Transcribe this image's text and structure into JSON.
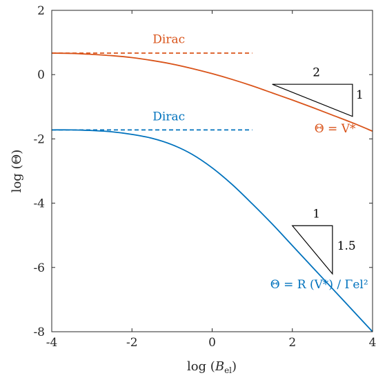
{
  "chart_data": {
    "type": "line",
    "xlabel": "log (B_el)",
    "ylabel": "log (Θ)",
    "xlim": [
      -4,
      4
    ],
    "ylim": [
      -8,
      2
    ],
    "xticks": [
      -4,
      -2,
      0,
      2,
      4
    ],
    "xtick_labels": [
      "-4",
      "-2",
      "0",
      "2",
      "4"
    ],
    "yticks": [
      -8,
      -6,
      -4,
      -2,
      0,
      2
    ],
    "ytick_labels": [
      "-8",
      "-6",
      "-4",
      "-2",
      "0",
      "2"
    ],
    "grid": false,
    "colors": {
      "orange": "#D95319",
      "blue": "#0072BD",
      "axis": "#262626"
    },
    "series": [
      {
        "name": "Θ = V*",
        "color": "#D95319",
        "style": "solid",
        "x": [
          -4,
          -3.5,
          -3,
          -2.5,
          -2,
          -1.5,
          -1,
          -0.5,
          0,
          0.5,
          1,
          1.5,
          2,
          2.5,
          3,
          3.5,
          4
        ],
        "y": [
          0.67,
          0.66,
          0.63,
          0.59,
          0.53,
          0.44,
          0.33,
          0.19,
          0.03,
          -0.15,
          -0.35,
          -0.57,
          -0.79,
          -1.02,
          -1.26,
          -1.5,
          -1.76
        ]
      },
      {
        "name": "Θ = R (V*) / Γel²",
        "color": "#0072BD",
        "style": "solid",
        "x": [
          -4,
          -3.5,
          -3,
          -2.5,
          -2,
          -1.5,
          -1,
          -0.5,
          0,
          0.5,
          1,
          1.5,
          2,
          2.5,
          3,
          3.5,
          4
        ],
        "y": [
          -1.72,
          -1.72,
          -1.74,
          -1.78,
          -1.86,
          -1.98,
          -2.18,
          -2.48,
          -2.9,
          -3.42,
          -4.02,
          -4.65,
          -5.32,
          -5.99,
          -6.66,
          -7.33,
          -8.0
        ]
      },
      {
        "name": "Dirac",
        "color": "#D95319",
        "style": "dashed",
        "x": [
          -4,
          1
        ],
        "y": [
          0.67,
          0.67
        ]
      },
      {
        "name": "Dirac",
        "color": "#0072BD",
        "style": "dashed",
        "x": [
          -4,
          1
        ],
        "y": [
          -1.72,
          -1.72
        ]
      }
    ],
    "annotations": {
      "dirac_top": {
        "text": "Dirac",
        "x": -1.08,
        "y": 0.98,
        "color": "#D95319"
      },
      "dirac_bottom": {
        "text": "Dirac",
        "x": -1.08,
        "y": -1.42,
        "color": "#0072BD"
      },
      "theta_v_label": {
        "text": "Θ = V*",
        "x": 2.55,
        "y": -1.8,
        "color": "#D95319"
      },
      "theta_r_label": {
        "text": "Θ = R (V*) / Γel²",
        "x": 1.45,
        "y": -6.65,
        "color": "#0072BD"
      },
      "triangle_top": {
        "points": [
          [
            1.5,
            -0.3
          ],
          [
            3.5,
            -0.3
          ],
          [
            3.5,
            -1.3
          ]
        ],
        "run_label": "2",
        "rise_label": "1",
        "run_label_pos": [
          2.6,
          -0.05
        ],
        "rise_label_pos": [
          3.68,
          -0.75
        ]
      },
      "triangle_bottom": {
        "points": [
          [
            2.0,
            -4.7
          ],
          [
            3.0,
            -4.7
          ],
          [
            3.0,
            -6.2
          ]
        ],
        "run_label": "1",
        "rise_label": "1.5",
        "run_label_pos": [
          2.6,
          -4.45
        ],
        "rise_label_pos": [
          3.35,
          -5.45
        ]
      }
    }
  }
}
